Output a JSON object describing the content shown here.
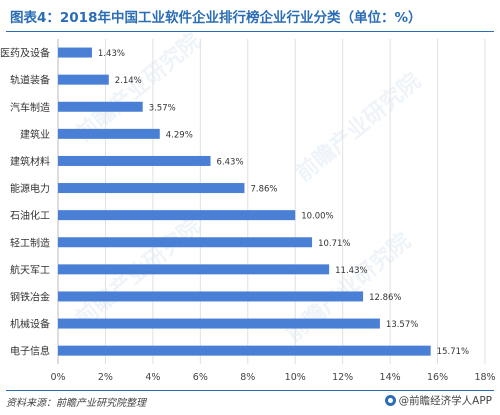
{
  "title": "图表4：2018年中国工业软件企业排行榜企业行业分类（单位：%）",
  "source": "资料来源：前瞻产业研究院整理",
  "brand": "@前瞻经济学人APP",
  "colors": {
    "bar": "#4a7fd6",
    "title": "#2a6db5",
    "grid": "#e0e0e0"
  },
  "chart_data": {
    "type": "bar",
    "orientation": "horizontal",
    "categories": [
      "医药及设备",
      "轨道装备",
      "汽车制造",
      "建筑业",
      "建筑材料",
      "能源电力",
      "石油化工",
      "轻工制造",
      "航天军工",
      "钢铁冶金",
      "机械设备",
      "电子信息"
    ],
    "values": [
      1.43,
      2.14,
      3.57,
      4.29,
      6.43,
      7.86,
      10.0,
      10.71,
      11.43,
      12.86,
      13.57,
      15.71
    ],
    "value_labels": [
      "1.43%",
      "2.14%",
      "3.57%",
      "4.29%",
      "6.43%",
      "7.86%",
      "10.00%",
      "10.71%",
      "11.43%",
      "12.86%",
      "13.57%",
      "15.71%"
    ],
    "xlim": [
      0,
      18
    ],
    "xticks": [
      "0%",
      "2%",
      "4%",
      "6%",
      "8%",
      "10%",
      "12%",
      "14%",
      "16%",
      "18%"
    ],
    "xlabel": "",
    "ylabel": "",
    "grid": true,
    "legend": "none"
  }
}
